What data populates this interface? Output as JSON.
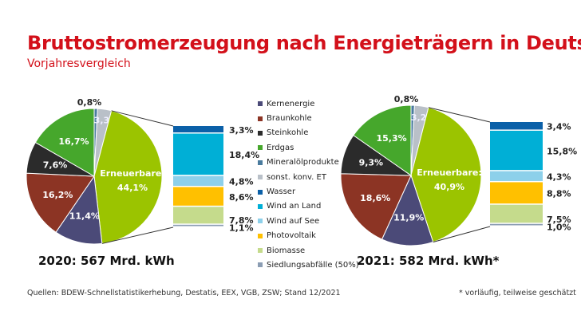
{
  "header": {
    "title": "Bruttostromerzeugung nach Energieträgern in Deutschland",
    "subtitle": "Vorjahresvergleich"
  },
  "footer": {
    "sources": "Quellen: BDEW-Schnellstatistikerhebung, Destatis, EEX, VGB, ZSW; Stand 12/2021",
    "note": "* vorläufig, teilweise geschätzt"
  },
  "legend": [
    {
      "label": "Kernenergie",
      "color": "#4b4a78"
    },
    {
      "label": "Braunkohle",
      "color": "#8c3424"
    },
    {
      "label": "Steinkohle",
      "color": "#2b2b2b"
    },
    {
      "label": "Erdgas",
      "color": "#46a72c"
    },
    {
      "label": "Mineralölprodukte",
      "color": "#4a7b9e"
    },
    {
      "label": "sonst. konv. ET",
      "color": "#b9c0c8"
    },
    {
      "label": "Wasser",
      "color": "#0b60a8"
    },
    {
      "label": "Wind an Land",
      "color": "#00afd6"
    },
    {
      "label": "Wind auf See",
      "color": "#8dd0ea"
    },
    {
      "label": "Photovoltaik",
      "color": "#ffc000"
    },
    {
      "label": "Biomasse",
      "color": "#c5db8c"
    },
    {
      "label": "Siedlungsabfälle (50%)",
      "color": "#8b9db3"
    }
  ],
  "renewable_color": "#9bc400",
  "chart_data": [
    {
      "type": "pie",
      "caption": "2020: 567 Mrd. kWh",
      "slices": [
        {
          "name": "Mineralölprodukte",
          "value": 0.8,
          "label": "0,8%"
        },
        {
          "name": "sonst. konv. ET",
          "value": 3.3,
          "label": "3,3%"
        },
        {
          "name": "Erneuerbare",
          "value": 44.1,
          "label": "Erneuerbare:",
          "label2": "44,1%"
        },
        {
          "name": "Kernenergie",
          "value": 11.4,
          "label": "11,4%"
        },
        {
          "name": "Braunkohle",
          "value": 16.2,
          "label": "16,2%"
        },
        {
          "name": "Steinkohle",
          "value": 7.6,
          "label": "7,6%"
        },
        {
          "name": "Erdgas",
          "value": 16.7,
          "label": "16,7%"
        }
      ],
      "renewable_breakdown": [
        {
          "name": "Wasser",
          "value": 3.3,
          "label": "3,3%"
        },
        {
          "name": "Wind an Land",
          "value": 18.4,
          "label": "18,4%"
        },
        {
          "name": "Wind auf See",
          "value": 4.8,
          "label": "4,8%"
        },
        {
          "name": "Photovoltaik",
          "value": 8.6,
          "label": "8,6%"
        },
        {
          "name": "Biomasse",
          "value": 7.8,
          "label": "7,8%"
        },
        {
          "name": "Siedlungsabfälle (50%)",
          "value": 1.1,
          "label": "1,1%"
        }
      ]
    },
    {
      "type": "pie",
      "caption": "2021: 582 Mrd. kWh*",
      "slices": [
        {
          "name": "Mineralölprodukte",
          "value": 0.8,
          "label": "0,8%"
        },
        {
          "name": "sonst. konv. ET",
          "value": 3.2,
          "label": "3,2%"
        },
        {
          "name": "Erneuerbare",
          "value": 40.9,
          "label": "Erneuerbare:",
          "label2": "40,9%"
        },
        {
          "name": "Kernenergie",
          "value": 11.9,
          "label": "11,9%"
        },
        {
          "name": "Braunkohle",
          "value": 18.6,
          "label": "18,6%"
        },
        {
          "name": "Steinkohle",
          "value": 9.3,
          "label": "9,3%"
        },
        {
          "name": "Erdgas",
          "value": 15.3,
          "label": "15,3%"
        }
      ],
      "renewable_breakdown": [
        {
          "name": "Wasser",
          "value": 3.4,
          "label": "3,4%"
        },
        {
          "name": "Wind an Land",
          "value": 15.8,
          "label": "15,8%"
        },
        {
          "name": "Wind auf See",
          "value": 4.3,
          "label": "4,3%"
        },
        {
          "name": "Photovoltaik",
          "value": 8.8,
          "label": "8,8%"
        },
        {
          "name": "Biomasse",
          "value": 7.5,
          "label": "7,5%"
        },
        {
          "name": "Siedlungsabfälle (50%)",
          "value": 1.0,
          "label": "1,0%"
        }
      ]
    }
  ]
}
